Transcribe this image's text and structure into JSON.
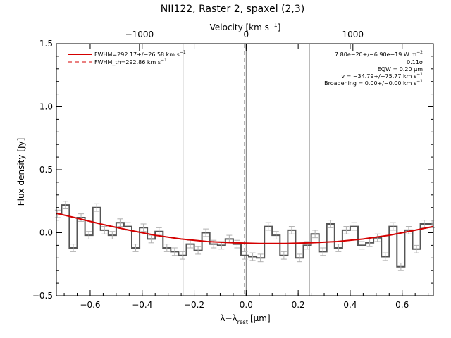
{
  "colors": {
    "fit": "#d40000",
    "spectrum": "#555555",
    "errorbar": "#b0b0b0",
    "axis": "#000000",
    "marker_line": "#777777"
  },
  "chart_data": {
    "type": "line",
    "title": "NII122, Raster 2, spaxel (2,3)",
    "xlabel": "λ−λ",
    "xlabel_sub": "rest",
    "xlabel_unit": "[μm]",
    "ylabel": "Flux density [Jy]",
    "top_axis_label": "Velocity [km s",
    "top_axis_label_sup": "−1",
    "top_axis_label_end": "]",
    "xlim": [
      -0.73,
      0.72
    ],
    "ylim": [
      -0.5,
      1.5
    ],
    "xticks": [
      -0.6,
      -0.4,
      -0.2,
      0.0,
      0.2,
      0.4,
      0.6
    ],
    "xtick_labels": [
      "−0.6",
      "−0.4",
      "−0.2",
      "0.0",
      "0.2",
      "0.4",
      "0.6"
    ],
    "yticks": [
      -0.5,
      0.0,
      0.5,
      1.0,
      1.5
    ],
    "ytick_labels": [
      "−0.5",
      "0.0",
      "0.5",
      "1.0",
      "1.5"
    ],
    "top_ticks_x": [
      -0.4105,
      0.0,
      0.4105
    ],
    "top_tick_labels": [
      "−1000",
      "0",
      "1000"
    ],
    "vertical_lines_x": [
      -0.243,
      0.243
    ],
    "center_line_x": -0.007,
    "grid": false,
    "legend_position": "top-left",
    "legend": [
      {
        "name": "FWHM=292.17+/−26.58 km s",
        "sup": "−1",
        "style": "solid"
      },
      {
        "name": "FWHM_th=292.86 km s",
        "sup": "−1",
        "style": "dashed"
      }
    ],
    "annotations": [
      {
        "text": "7.80e−20+/−6.90e−19 W m",
        "sup": "−2"
      },
      {
        "text": "0.11σ",
        "sup": ""
      },
      {
        "text": "EQW = 0.20 μm",
        "sup": ""
      },
      {
        "text": "v = −34.79+/−75.77 km s",
        "sup": "−1"
      },
      {
        "text": "Broadening = 0.00+/−0.00 km s",
        "sup": "−1"
      }
    ],
    "series": [
      {
        "style": "step",
        "x": [
          -0.725,
          -0.695,
          -0.665,
          -0.635,
          -0.605,
          -0.575,
          -0.545,
          -0.515,
          -0.485,
          -0.455,
          -0.425,
          -0.395,
          -0.365,
          -0.335,
          -0.305,
          -0.275,
          -0.245,
          -0.215,
          -0.185,
          -0.155,
          -0.125,
          -0.095,
          -0.065,
          -0.035,
          -0.005,
          0.025,
          0.055,
          0.085,
          0.115,
          0.145,
          0.175,
          0.205,
          0.235,
          0.265,
          0.295,
          0.325,
          0.355,
          0.385,
          0.415,
          0.445,
          0.475,
          0.505,
          0.535,
          0.565,
          0.595,
          0.625,
          0.655,
          0.685,
          0.715
        ],
        "y": [
          0.15,
          0.22,
          -0.12,
          0.12,
          -0.02,
          0.2,
          0.02,
          -0.02,
          0.08,
          0.05,
          -0.12,
          0.04,
          -0.05,
          0.01,
          -0.12,
          -0.15,
          -0.18,
          -0.09,
          -0.14,
          0.0,
          -0.09,
          -0.1,
          -0.05,
          -0.09,
          -0.18,
          -0.19,
          -0.2,
          0.05,
          -0.02,
          -0.18,
          0.02,
          -0.2,
          -0.1,
          -0.01,
          -0.15,
          0.07,
          -0.12,
          0.02,
          0.05,
          -0.1,
          -0.08,
          -0.04,
          -0.19,
          0.05,
          -0.27,
          0.02,
          -0.13,
          0.07,
          0.07
        ],
        "yerr": 0.03
      },
      {
        "name": "FWHM=292.17+/−26.58 km s−1",
        "style": "fit",
        "x": [
          -0.73,
          -0.65,
          -0.55,
          -0.45,
          -0.35,
          -0.25,
          -0.15,
          -0.05,
          0.05,
          0.15,
          0.25,
          0.35,
          0.45,
          0.55,
          0.65,
          0.72
        ],
        "y": [
          0.155,
          0.115,
          0.065,
          0.02,
          -0.02,
          -0.05,
          -0.07,
          -0.08,
          -0.085,
          -0.085,
          -0.08,
          -0.07,
          -0.05,
          -0.02,
          0.02,
          0.05
        ]
      }
    ]
  }
}
